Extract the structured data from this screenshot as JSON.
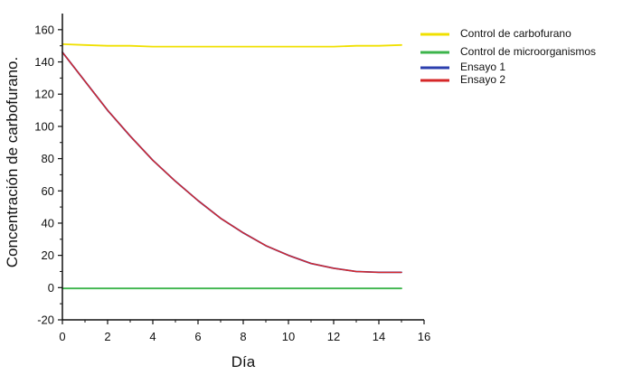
{
  "chart_data": {
    "type": "line",
    "title": "",
    "xlabel": "Día",
    "ylabel": "Concentración de carbofurano.",
    "xlim": [
      0,
      16
    ],
    "ylim": [
      -20,
      170
    ],
    "xticks": [
      0,
      2,
      4,
      6,
      8,
      10,
      12,
      14,
      16
    ],
    "yticks": [
      -20,
      0,
      20,
      40,
      60,
      80,
      100,
      120,
      140,
      160
    ],
    "grid": false,
    "legend_position": "top-right",
    "series": [
      {
        "name": "Control de carbofurano",
        "color": "#f0e000",
        "x": [
          0,
          1,
          2,
          3,
          4,
          5,
          6,
          7,
          8,
          9,
          10,
          11,
          12,
          13,
          14,
          15
        ],
        "y": [
          151,
          150.5,
          150,
          150,
          149.5,
          149.5,
          149.5,
          149.5,
          149.5,
          149.5,
          149.5,
          149.5,
          149.5,
          150,
          150,
          150.5
        ]
      },
      {
        "name": "Control de microorganismos",
        "color": "#3cb44b",
        "x": [
          0,
          15
        ],
        "y": [
          -0.5,
          -0.5
        ]
      },
      {
        "name": "Ensayo 1",
        "color": "#2b3fae",
        "x": [
          0,
          1,
          2,
          3,
          4,
          5,
          6,
          7,
          8,
          9,
          10,
          11,
          12,
          13,
          14,
          15
        ],
        "y": [
          146,
          128,
          110,
          94,
          79,
          66,
          54,
          43,
          34,
          26,
          20,
          15,
          12,
          10,
          9.5,
          9.5
        ]
      },
      {
        "name": "Ensayo 2",
        "color": "#d62728",
        "x": [
          0,
          1,
          2,
          3,
          4,
          5,
          6,
          7,
          8,
          9,
          10,
          11,
          12,
          13,
          14,
          15
        ],
        "y": [
          146,
          128,
          110,
          94,
          79,
          66,
          54,
          43,
          34,
          26,
          20,
          15,
          12,
          10,
          9.5,
          9.5
        ]
      }
    ]
  }
}
